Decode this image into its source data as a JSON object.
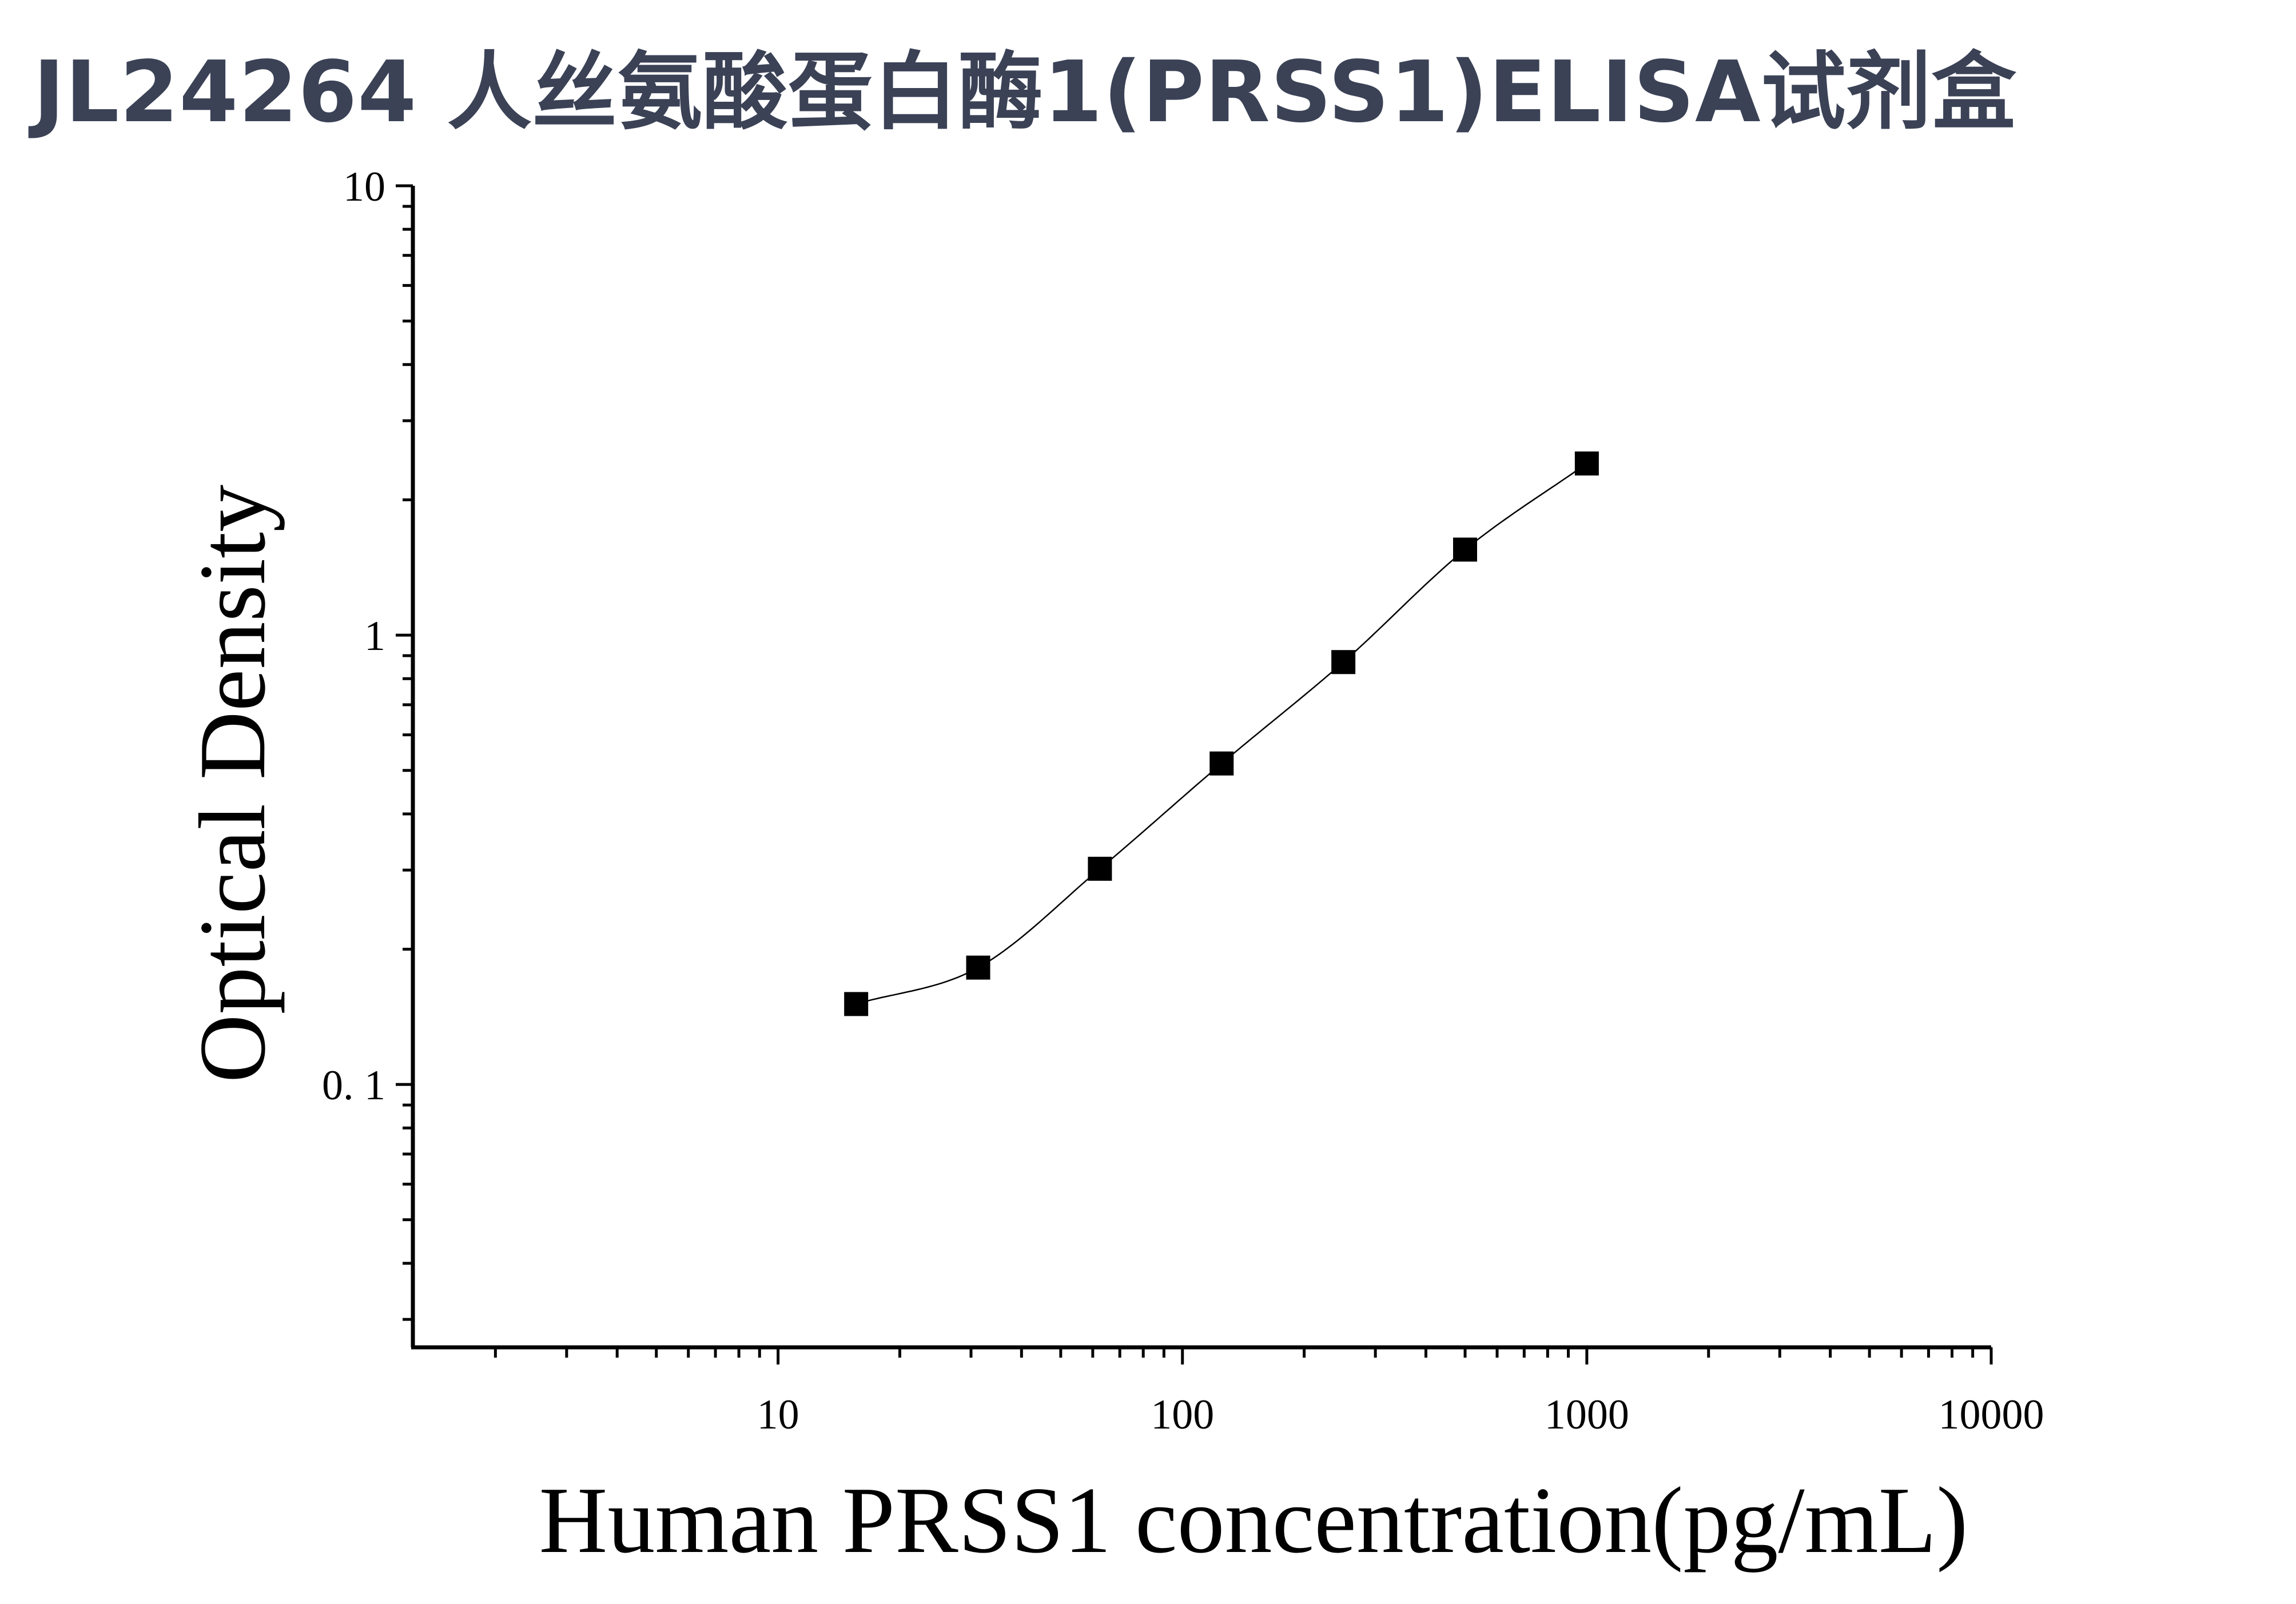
{
  "title": "JL24264 人丝氨酸蛋白酶1(PRSS1)ELISA试剂盒",
  "chart_data": {
    "type": "scatter",
    "x_scale": "log",
    "y_scale": "log",
    "xlabel": "Human PRSS1 concentration(pg/mL)",
    "ylabel": "Optical Density",
    "xlim": [
      1.25,
      10000
    ],
    "ylim": [
      0.026,
      10
    ],
    "x_ticks": [
      {
        "value": 10,
        "label": "10"
      },
      {
        "value": 100,
        "label": "100"
      },
      {
        "value": 1000,
        "label": "1000"
      },
      {
        "value": 10000,
        "label": "10000"
      }
    ],
    "y_ticks": [
      {
        "value": 0.1,
        "label": "0. 1"
      },
      {
        "value": 1,
        "label": "1"
      },
      {
        "value": 10,
        "label": "10"
      }
    ],
    "grid": false,
    "marker": "square",
    "color": "#000000",
    "series": [
      {
        "x": [
          15.6,
          31.25,
          62.5,
          125,
          250,
          500,
          1000
        ],
        "y": [
          0.151,
          0.182,
          0.302,
          0.518,
          0.871,
          1.55,
          2.41
        ]
      }
    ]
  }
}
